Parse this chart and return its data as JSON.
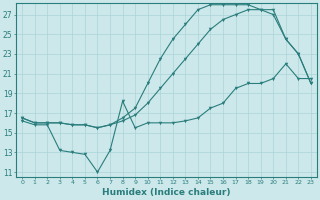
{
  "xlabel": "Humidex (Indice chaleur)",
  "xlim": [
    -0.5,
    23.5
  ],
  "ylim": [
    10.5,
    28.2
  ],
  "xticks": [
    0,
    1,
    2,
    3,
    4,
    5,
    6,
    7,
    8,
    9,
    10,
    11,
    12,
    13,
    14,
    15,
    16,
    17,
    18,
    19,
    20,
    21,
    22,
    23
  ],
  "yticks": [
    11,
    13,
    15,
    17,
    19,
    21,
    23,
    25,
    27
  ],
  "bg_color": "#cce8ea",
  "grid_color": "#aad4d8",
  "line_color": "#2a7d7d",
  "line1_x": [
    0,
    1,
    2,
    3,
    4,
    5,
    6,
    7,
    8,
    9,
    10,
    11,
    12,
    13,
    14,
    15,
    16,
    17,
    18,
    19,
    20,
    21,
    22,
    23
  ],
  "line1_y": [
    16.2,
    15.8,
    15.8,
    13.2,
    13.0,
    12.8,
    11.0,
    13.2,
    18.2,
    15.5,
    16.0,
    16.0,
    16.0,
    16.2,
    16.5,
    17.5,
    18.0,
    19.5,
    20.0,
    20.0,
    20.5,
    22.0,
    20.5,
    20.5
  ],
  "line2_x": [
    0,
    1,
    2,
    3,
    4,
    5,
    6,
    7,
    8,
    9,
    10,
    11,
    12,
    13,
    14,
    15,
    16,
    17,
    18,
    19,
    20,
    21,
    22,
    23
  ],
  "line2_y": [
    16.5,
    16.0,
    16.0,
    16.0,
    15.8,
    15.8,
    15.5,
    15.8,
    16.2,
    16.8,
    18.0,
    19.5,
    21.0,
    22.5,
    24.0,
    25.5,
    26.5,
    27.0,
    27.5,
    27.5,
    27.0,
    24.5,
    23.0,
    20.0
  ],
  "line3_x": [
    0,
    1,
    2,
    3,
    4,
    5,
    6,
    7,
    8,
    9,
    10,
    11,
    12,
    13,
    14,
    15,
    16,
    17,
    18,
    19,
    20,
    21,
    22,
    23
  ],
  "line3_y": [
    16.5,
    16.0,
    16.0,
    16.0,
    15.8,
    15.8,
    15.5,
    15.8,
    16.5,
    17.5,
    20.0,
    22.5,
    24.5,
    26.0,
    27.5,
    28.0,
    28.0,
    28.0,
    28.0,
    27.5,
    27.5,
    24.5,
    23.0,
    20.0
  ]
}
